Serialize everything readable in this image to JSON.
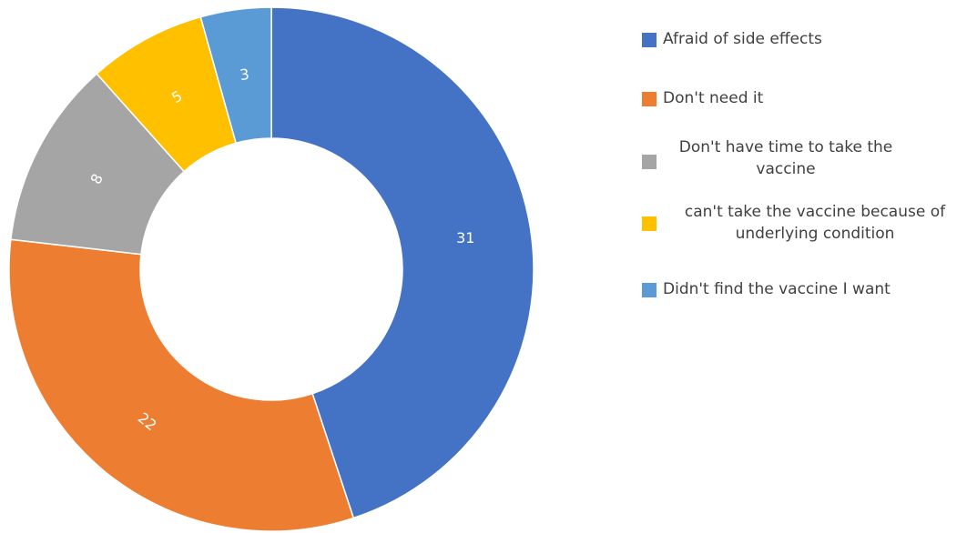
{
  "chart_data": {
    "type": "pie",
    "variant": "donut",
    "title": "",
    "categories": [
      "Afraid of side effects",
      "Don't need it",
      "Don't have time to take the vaccine",
      "can't take the vaccine because of underlying condition",
      "Didn't find the vaccine I want"
    ],
    "values": [
      31,
      22,
      8,
      5,
      3
    ],
    "colors": [
      "#4472C4",
      "#ED7D31",
      "#A5A5A5",
      "#FFC000",
      "#5B9BD5"
    ],
    "data_labels": [
      "31",
      "22",
      "8",
      "5",
      "3"
    ],
    "legend_position": "right"
  },
  "legend": {
    "items": [
      {
        "label": "Afraid of side effects",
        "color": "#4472C4"
      },
      {
        "label": "Don't need it",
        "color": "#ED7D31"
      },
      {
        "label": "Don't have time to take the vaccine",
        "color": "#A5A5A5"
      },
      {
        "label": "can't take the vaccine because of underlying condition",
        "color": "#FFC000"
      },
      {
        "label": "Didn't find the vaccine I want",
        "color": "#5B9BD5"
      }
    ]
  }
}
